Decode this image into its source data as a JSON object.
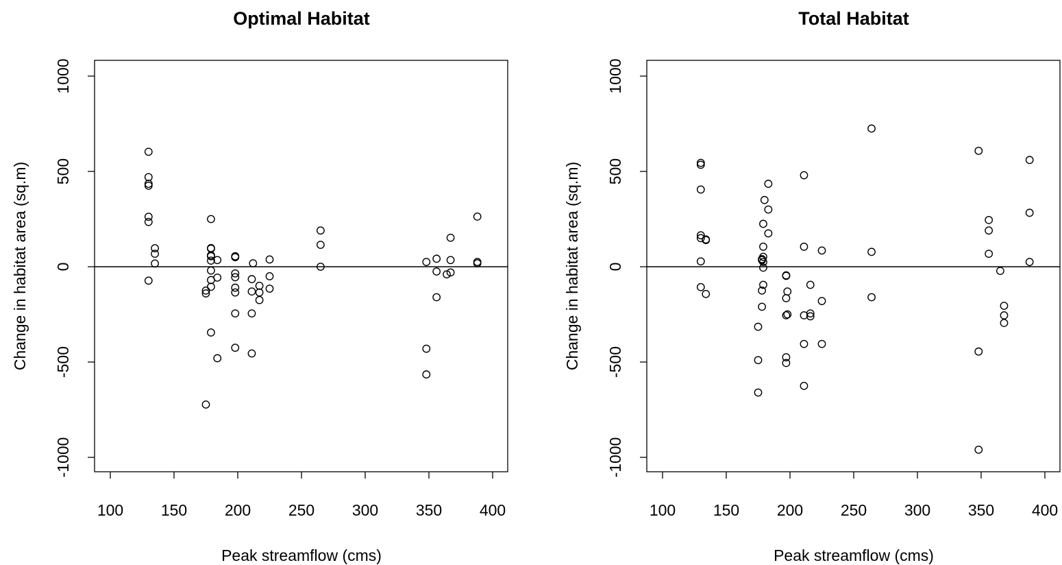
{
  "chart_data": [
    {
      "type": "scatter",
      "title": "Optimal Habitat",
      "xlabel": "Peak streamflow (cms)",
      "ylabel": "Change in habitat area (sq.m)",
      "xlim": [
        100,
        400
      ],
      "ylim": [
        -1000,
        1000
      ],
      "xticks": [
        "100",
        "150",
        "200",
        "250",
        "300",
        "350",
        "400"
      ],
      "yticks": [
        "-1000",
        "-500",
        "0",
        "500",
        "1000"
      ],
      "hline": 0,
      "grid": false,
      "points": [
        [
          130,
          603
        ],
        [
          130,
          470
        ],
        [
          130,
          435
        ],
        [
          130,
          425
        ],
        [
          130,
          262
        ],
        [
          130,
          235
        ],
        [
          130,
          -73
        ],
        [
          135,
          97
        ],
        [
          135,
          68
        ],
        [
          135,
          17
        ],
        [
          175,
          -125
        ],
        [
          175,
          -140
        ],
        [
          175,
          -723
        ],
        [
          179,
          250
        ],
        [
          179,
          98
        ],
        [
          179,
          95
        ],
        [
          179,
          60
        ],
        [
          179,
          55
        ],
        [
          179,
          32
        ],
        [
          179,
          -20
        ],
        [
          179,
          -70
        ],
        [
          179,
          -105
        ],
        [
          179,
          -345
        ],
        [
          184,
          35
        ],
        [
          184,
          -57
        ],
        [
          184,
          -480
        ],
        [
          198,
          55
        ],
        [
          198,
          50
        ],
        [
          198,
          -35
        ],
        [
          198,
          -55
        ],
        [
          198,
          -110
        ],
        [
          198,
          -135
        ],
        [
          198,
          -245
        ],
        [
          198,
          -425
        ],
        [
          211,
          -65
        ],
        [
          211,
          -130
        ],
        [
          211,
          -245
        ],
        [
          211,
          -455
        ],
        [
          212,
          18
        ],
        [
          217,
          -100
        ],
        [
          217,
          -135
        ],
        [
          217,
          -175
        ],
        [
          225,
          38
        ],
        [
          225,
          -50
        ],
        [
          225,
          -115
        ],
        [
          265,
          190
        ],
        [
          265,
          115
        ],
        [
          265,
          0
        ],
        [
          348,
          25
        ],
        [
          348,
          -430
        ],
        [
          348,
          -565
        ],
        [
          356,
          42
        ],
        [
          356,
          -25
        ],
        [
          356,
          -160
        ],
        [
          364,
          -40
        ],
        [
          367,
          152
        ],
        [
          367,
          35
        ],
        [
          367,
          -30
        ],
        [
          388,
          263
        ],
        [
          388,
          25
        ],
        [
          388,
          18
        ]
      ]
    },
    {
      "type": "scatter",
      "title": "Total Habitat",
      "xlabel": "Peak streamflow (cms)",
      "ylabel": "Change in habitat area (sq.m)",
      "xlim": [
        100,
        400
      ],
      "ylim": [
        -1000,
        1000
      ],
      "xticks": [
        "100",
        "150",
        "200",
        "250",
        "300",
        "350",
        "400"
      ],
      "yticks": [
        "-1000",
        "-500",
        "0",
        "500",
        "1000"
      ],
      "hline": 0,
      "grid": false,
      "points": [
        [
          130,
          545
        ],
        [
          130,
          535
        ],
        [
          130,
          405
        ],
        [
          130,
          165
        ],
        [
          130,
          150
        ],
        [
          130,
          28
        ],
        [
          130,
          -107
        ],
        [
          134,
          143
        ],
        [
          134,
          140
        ],
        [
          134,
          -143
        ],
        [
          175,
          -315
        ],
        [
          175,
          -490
        ],
        [
          175,
          -660
        ],
        [
          178,
          40
        ],
        [
          178,
          35
        ],
        [
          178,
          -125
        ],
        [
          178,
          -210
        ],
        [
          179,
          225
        ],
        [
          179,
          105
        ],
        [
          179,
          52
        ],
        [
          179,
          25
        ],
        [
          179,
          -5
        ],
        [
          179,
          -95
        ],
        [
          180,
          350
        ],
        [
          183,
          435
        ],
        [
          183,
          300
        ],
        [
          183,
          175
        ],
        [
          197,
          -45
        ],
        [
          197,
          -48
        ],
        [
          197,
          -165
        ],
        [
          197,
          -255
        ],
        [
          197,
          -475
        ],
        [
          197,
          -505
        ],
        [
          198,
          -130
        ],
        [
          198,
          -250
        ],
        [
          211,
          480
        ],
        [
          211,
          105
        ],
        [
          211,
          -255
        ],
        [
          211,
          -405
        ],
        [
          211,
          -625
        ],
        [
          216,
          -95
        ],
        [
          216,
          -245
        ],
        [
          216,
          -260
        ],
        [
          225,
          85
        ],
        [
          225,
          -180
        ],
        [
          225,
          -405
        ],
        [
          264,
          725
        ],
        [
          264,
          78
        ],
        [
          264,
          -160
        ],
        [
          348,
          608
        ],
        [
          348,
          -445
        ],
        [
          348,
          -960
        ],
        [
          356,
          245
        ],
        [
          356,
          190
        ],
        [
          356,
          68
        ],
        [
          365,
          -22
        ],
        [
          368,
          -205
        ],
        [
          368,
          -255
        ],
        [
          368,
          -295
        ],
        [
          388,
          560
        ],
        [
          388,
          283
        ],
        [
          388,
          25
        ]
      ]
    }
  ]
}
